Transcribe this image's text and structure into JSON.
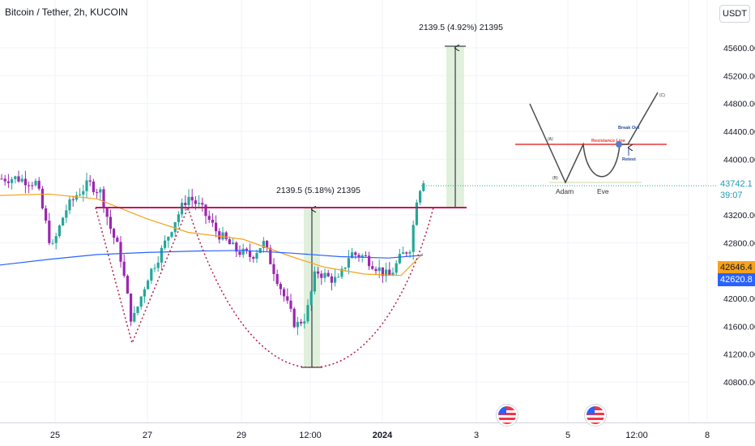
{
  "header": {
    "symbol_title": "Bitcoin / Tether, 2h, KUCOIN",
    "currency": "USDT"
  },
  "price_axis": {
    "ticks": [
      "45600.00",
      "45200.00",
      "44800.00",
      "44400.00",
      "44000.00",
      "43200.00",
      "42800.00",
      "42000.00",
      "41600.00",
      "41200.00",
      "40800.00"
    ],
    "tick_values": [
      45600,
      45200,
      44800,
      44400,
      44000,
      43200,
      42800,
      42000,
      41600,
      41200,
      40800
    ],
    "last_price": "43742.1",
    "countdown": "39:07",
    "ma50_value": "42646.4",
    "ma200_value": "42620.8"
  },
  "time_axis": {
    "labels": [
      "25",
      "27",
      "29",
      "12:00",
      "2024",
      "3",
      "5",
      "12:00",
      "8"
    ]
  },
  "annotations": {
    "cup_measure": "2139.5 (5.18%) 21395",
    "target_measure": "2139.5 (4.92%) 21395"
  },
  "inset": {
    "resistance_label": "Resistance Line",
    "breakout_label": "Break Out",
    "retest_label": "Retest",
    "adam_label": "Adam",
    "eve_label": "Eve",
    "point_a": "(A)",
    "point_b": "(B)",
    "point_c": "(C)"
  },
  "events": {
    "icon": "us-flag-icon",
    "count": 2
  },
  "colors": {
    "up": "#26a69a",
    "down": "#9c27b0",
    "ma50": "#f7a21b",
    "ma200": "#2962ff",
    "neckline": "#c2185b",
    "cup": "#b71c47",
    "measure_fill": "#d8ecd5",
    "resistance_inset": "#e53935"
  },
  "chart_data": {
    "type": "candlestick",
    "symbol": "BTC/USDT",
    "ylim": [
      40700,
      45900
    ],
    "neckline": 43470,
    "cup_bottom": 41290,
    "target": 45610,
    "measure_move": 2139.5,
    "ma50_end": 42646.4,
    "ma200_end": 42620.8,
    "last": 43742.1
  }
}
